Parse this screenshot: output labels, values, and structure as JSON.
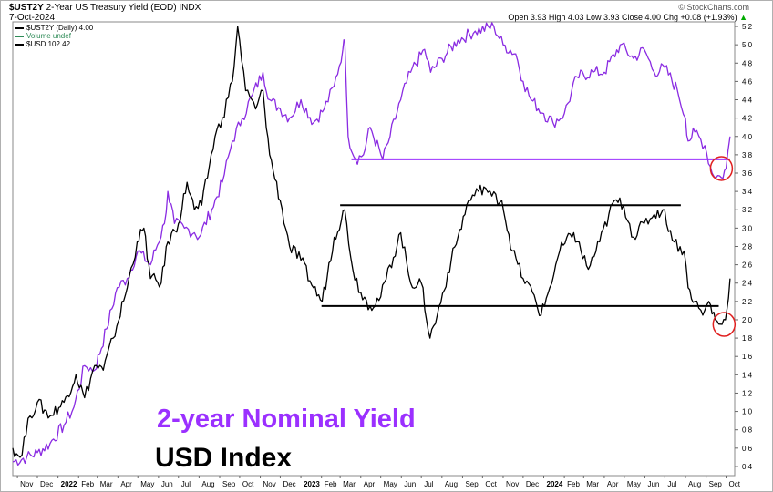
{
  "header": {
    "symbol": "$UST2Y",
    "description": "2-Year US Treasury Yield (EOD)",
    "exchange": "INDX",
    "date": "7-Oct-2024",
    "brand": "© StockCharts.com",
    "quote": "Open 3.93  High 4.03  Low 3.93  Close 4.00  Chg +0.08 (+1.93%)",
    "quote_arrow": "▲"
  },
  "legend": [
    {
      "label": "$UST2Y (Daily) 4.00",
      "color": "#000000"
    },
    {
      "label": "Volume undef",
      "color": "#2e8b57"
    },
    {
      "label": "$USD 102.42",
      "color": "#000000"
    }
  ],
  "overlay": {
    "title_1": "2-year Nominal Yield",
    "title_2": "USD Index"
  },
  "colors": {
    "ust2y": "#8a2be2",
    "usd": "#000000",
    "circle": "#e02020",
    "purple_line": "#9b30ff"
  },
  "chart_data": {
    "type": "line",
    "y_axis": {
      "min": 0.3,
      "max": 5.25,
      "ticks": [
        0.4,
        0.6,
        0.8,
        1.0,
        1.2,
        1.4,
        1.6,
        1.8,
        2.0,
        2.2,
        2.4,
        2.6,
        2.8,
        3.0,
        3.2,
        3.4,
        3.6,
        3.8,
        4.0,
        4.2,
        4.4,
        4.6,
        4.8,
        5.0,
        5.2
      ]
    },
    "x_axis": {
      "min": "2021-10-25",
      "max": "2024-10-14",
      "ticks": [
        {
          "label": "Nov",
          "date": "2021-11-01"
        },
        {
          "label": "Dec",
          "date": "2021-12-01"
        },
        {
          "label": "2022",
          "date": "2022-01-01",
          "bold": true
        },
        {
          "label": "Feb",
          "date": "2022-02-01"
        },
        {
          "label": "Mar",
          "date": "2022-03-01"
        },
        {
          "label": "Apr",
          "date": "2022-04-01"
        },
        {
          "label": "May",
          "date": "2022-05-01"
        },
        {
          "label": "Jun",
          "date": "2022-06-01"
        },
        {
          "label": "Jul",
          "date": "2022-07-01"
        },
        {
          "label": "Aug",
          "date": "2022-08-01"
        },
        {
          "label": "Sep",
          "date": "2022-09-01"
        },
        {
          "label": "Oct",
          "date": "2022-10-01"
        },
        {
          "label": "Nov",
          "date": "2022-11-01"
        },
        {
          "label": "Dec",
          "date": "2022-12-01"
        },
        {
          "label": "2023",
          "date": "2023-01-01",
          "bold": true
        },
        {
          "label": "Feb",
          "date": "2023-02-01"
        },
        {
          "label": "Mar",
          "date": "2023-03-01"
        },
        {
          "label": "Apr",
          "date": "2023-04-01"
        },
        {
          "label": "May",
          "date": "2023-05-01"
        },
        {
          "label": "Jun",
          "date": "2023-06-01"
        },
        {
          "label": "Jul",
          "date": "2023-07-01"
        },
        {
          "label": "Aug",
          "date": "2023-08-01"
        },
        {
          "label": "Sep",
          "date": "2023-09-01"
        },
        {
          "label": "Oct",
          "date": "2023-10-01"
        },
        {
          "label": "Nov",
          "date": "2023-11-01"
        },
        {
          "label": "Dec",
          "date": "2023-12-01"
        },
        {
          "label": "2024",
          "date": "2024-01-01",
          "bold": true
        },
        {
          "label": "Feb",
          "date": "2024-02-01"
        },
        {
          "label": "Mar",
          "date": "2024-03-01"
        },
        {
          "label": "Apr",
          "date": "2024-04-01"
        },
        {
          "label": "May",
          "date": "2024-05-01"
        },
        {
          "label": "Jun",
          "date": "2024-06-01"
        },
        {
          "label": "Jul",
          "date": "2024-07-01"
        },
        {
          "label": "Aug",
          "date": "2024-08-01"
        },
        {
          "label": "Sep",
          "date": "2024-09-01"
        },
        {
          "label": "Oct",
          "date": "2024-10-01"
        }
      ]
    },
    "series": [
      {
        "name": "$UST2Y",
        "color": "#8a2be2",
        "points": [
          [
            "2021-10-25",
            0.45
          ],
          [
            "2021-11-15",
            0.5
          ],
          [
            "2021-12-01",
            0.55
          ],
          [
            "2021-12-20",
            0.65
          ],
          [
            "2022-01-10",
            0.85
          ],
          [
            "2022-01-25",
            1.05
          ],
          [
            "2022-02-10",
            1.5
          ],
          [
            "2022-02-25",
            1.45
          ],
          [
            "2022-03-15",
            1.9
          ],
          [
            "2022-03-31",
            2.35
          ],
          [
            "2022-04-15",
            2.45
          ],
          [
            "2022-05-01",
            2.75
          ],
          [
            "2022-05-20",
            2.6
          ],
          [
            "2022-06-10",
            3.05
          ],
          [
            "2022-06-15",
            3.4
          ],
          [
            "2022-06-25",
            3.05
          ],
          [
            "2022-07-10",
            3.0
          ],
          [
            "2022-07-25",
            2.95
          ],
          [
            "2022-08-01",
            2.9
          ],
          [
            "2022-08-20",
            3.2
          ],
          [
            "2022-09-05",
            3.5
          ],
          [
            "2022-09-20",
            3.95
          ],
          [
            "2022-10-05",
            4.2
          ],
          [
            "2022-10-20",
            4.45
          ],
          [
            "2022-11-05",
            4.7
          ],
          [
            "2022-11-15",
            4.4
          ],
          [
            "2022-12-01",
            4.3
          ],
          [
            "2022-12-15",
            4.2
          ],
          [
            "2023-01-01",
            4.4
          ],
          [
            "2023-01-20",
            4.15
          ],
          [
            "2023-02-05",
            4.3
          ],
          [
            "2023-02-20",
            4.55
          ],
          [
            "2023-03-05",
            4.95
          ],
          [
            "2023-03-08",
            5.05
          ],
          [
            "2023-03-13",
            4.0
          ],
          [
            "2023-03-24",
            3.75
          ],
          [
            "2023-04-05",
            3.8
          ],
          [
            "2023-04-15",
            4.1
          ],
          [
            "2023-05-04",
            3.75
          ],
          [
            "2023-05-15",
            4.0
          ],
          [
            "2023-05-31",
            4.4
          ],
          [
            "2023-06-15",
            4.7
          ],
          [
            "2023-07-06",
            4.95
          ],
          [
            "2023-07-15",
            4.7
          ],
          [
            "2023-08-01",
            4.85
          ],
          [
            "2023-08-25",
            5.05
          ],
          [
            "2023-09-20",
            5.15
          ],
          [
            "2023-10-18",
            5.2
          ],
          [
            "2023-11-01",
            5.0
          ],
          [
            "2023-11-20",
            4.9
          ],
          [
            "2023-12-01",
            4.6
          ],
          [
            "2023-12-13",
            4.4
          ],
          [
            "2024-01-01",
            4.25
          ],
          [
            "2024-01-15",
            4.15
          ],
          [
            "2024-02-01",
            4.25
          ],
          [
            "2024-02-20",
            4.65
          ],
          [
            "2024-03-15",
            4.7
          ],
          [
            "2024-04-01",
            4.7
          ],
          [
            "2024-04-25",
            5.0
          ],
          [
            "2024-05-15",
            4.85
          ],
          [
            "2024-05-31",
            4.95
          ],
          [
            "2024-06-15",
            4.7
          ],
          [
            "2024-07-01",
            4.75
          ],
          [
            "2024-07-20",
            4.5
          ],
          [
            "2024-08-01",
            4.2
          ],
          [
            "2024-08-05",
            3.95
          ],
          [
            "2024-08-15",
            4.05
          ],
          [
            "2024-08-30",
            3.9
          ],
          [
            "2024-09-10",
            3.6
          ],
          [
            "2024-09-24",
            3.55
          ],
          [
            "2024-10-01",
            3.65
          ],
          [
            "2024-10-07",
            4.0
          ]
        ]
      },
      {
        "name": "$USD",
        "color": "#000000",
        "points": [
          [
            "2021-10-25",
            0.6
          ],
          [
            "2021-11-05",
            0.5
          ],
          [
            "2021-11-20",
            0.95
          ],
          [
            "2021-12-01",
            1.1
          ],
          [
            "2021-12-20",
            0.95
          ],
          [
            "2022-01-10",
            1.1
          ],
          [
            "2022-01-28",
            1.4
          ],
          [
            "2022-02-10",
            1.15
          ],
          [
            "2022-02-25",
            1.5
          ],
          [
            "2022-03-10",
            1.45
          ],
          [
            "2022-03-25",
            1.8
          ],
          [
            "2022-04-15",
            2.35
          ],
          [
            "2022-04-30",
            2.85
          ],
          [
            "2022-05-10",
            3.0
          ],
          [
            "2022-05-20",
            2.45
          ],
          [
            "2022-06-05",
            2.4
          ],
          [
            "2022-06-15",
            2.85
          ],
          [
            "2022-07-01",
            3.05
          ],
          [
            "2022-07-14",
            3.5
          ],
          [
            "2022-07-25",
            3.2
          ],
          [
            "2022-08-05",
            3.25
          ],
          [
            "2022-08-25",
            4.0
          ],
          [
            "2022-09-05",
            4.2
          ],
          [
            "2022-09-20",
            4.6
          ],
          [
            "2022-09-28",
            5.2
          ],
          [
            "2022-10-10",
            4.5
          ],
          [
            "2022-10-25",
            4.3
          ],
          [
            "2022-11-05",
            4.5
          ],
          [
            "2022-11-15",
            3.8
          ],
          [
            "2022-12-01",
            3.3
          ],
          [
            "2022-12-15",
            2.8
          ],
          [
            "2023-01-01",
            2.65
          ],
          [
            "2023-01-20",
            2.35
          ],
          [
            "2023-02-02",
            2.2
          ],
          [
            "2023-02-20",
            2.9
          ],
          [
            "2023-03-08",
            3.2
          ],
          [
            "2023-03-20",
            2.55
          ],
          [
            "2023-04-01",
            2.3
          ],
          [
            "2023-04-15",
            2.15
          ],
          [
            "2023-05-01",
            2.25
          ],
          [
            "2023-05-31",
            2.95
          ],
          [
            "2023-06-15",
            2.4
          ],
          [
            "2023-07-01",
            2.4
          ],
          [
            "2023-07-14",
            1.8
          ],
          [
            "2023-07-25",
            2.05
          ],
          [
            "2023-08-15",
            2.65
          ],
          [
            "2023-08-25",
            2.9
          ],
          [
            "2023-09-10",
            3.3
          ],
          [
            "2023-09-25",
            3.4
          ],
          [
            "2023-10-03",
            3.45
          ],
          [
            "2023-10-15",
            3.35
          ],
          [
            "2023-10-30",
            3.3
          ],
          [
            "2023-11-15",
            2.75
          ],
          [
            "2023-12-01",
            2.45
          ],
          [
            "2023-12-15",
            2.3
          ],
          [
            "2023-12-28",
            2.05
          ],
          [
            "2024-01-10",
            2.35
          ],
          [
            "2024-01-25",
            2.75
          ],
          [
            "2024-02-15",
            2.95
          ],
          [
            "2024-03-08",
            2.55
          ],
          [
            "2024-03-25",
            2.85
          ],
          [
            "2024-04-16",
            3.3
          ],
          [
            "2024-04-30",
            3.25
          ],
          [
            "2024-05-15",
            2.9
          ],
          [
            "2024-05-31",
            3.05
          ],
          [
            "2024-06-15",
            3.15
          ],
          [
            "2024-06-28",
            3.2
          ],
          [
            "2024-07-15",
            2.85
          ],
          [
            "2024-07-30",
            2.75
          ],
          [
            "2024-08-05",
            2.35
          ],
          [
            "2024-08-15",
            2.2
          ],
          [
            "2024-08-27",
            2.05
          ],
          [
            "2024-09-05",
            2.2
          ],
          [
            "2024-09-15",
            2.0
          ],
          [
            "2024-09-25",
            1.95
          ],
          [
            "2024-09-30",
            2.0
          ],
          [
            "2024-10-07",
            2.45
          ]
        ]
      }
    ],
    "annotations": [
      {
        "type": "hline",
        "color": "#9b30ff",
        "y": 3.75,
        "x1": "2023-03-18",
        "x2": "2024-10-07"
      },
      {
        "type": "hline",
        "color": "#000000",
        "y": 3.25,
        "x1": "2023-03-01",
        "x2": "2024-07-25"
      },
      {
        "type": "hline",
        "color": "#000000",
        "y": 2.15,
        "x1": "2023-02-01",
        "x2": "2024-09-20"
      },
      {
        "type": "circle",
        "color": "#e02020",
        "x": "2024-09-24",
        "y": 3.65
      },
      {
        "type": "circle",
        "color": "#e02020",
        "x": "2024-09-28",
        "y": 1.95
      }
    ]
  }
}
